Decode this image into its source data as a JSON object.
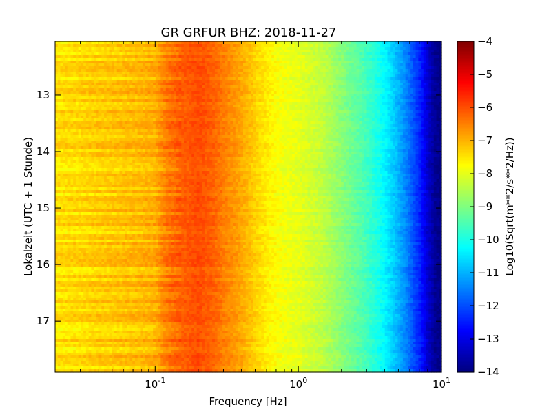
{
  "chart_data": {
    "type": "heatmap",
    "title": "GR GRFUR BHZ: 2018-11-27",
    "xlabel": "Frequency [Hz]",
    "ylabel": "Lokalzeit (UTC + 1 Stunde)",
    "x_scale": "log",
    "xlim": [
      0.02,
      10
    ],
    "x_ticks": [
      0.1,
      1,
      10
    ],
    "x_tick_labels": [
      {
        "base": "10",
        "exp": "-1"
      },
      {
        "base": "10",
        "exp": "0"
      },
      {
        "base": "10",
        "exp": "1"
      }
    ],
    "ylim": [
      12.05,
      17.9
    ],
    "y_inverted": true,
    "y_ticks": [
      13,
      14,
      15,
      16,
      17
    ],
    "y_tick_labels": [
      "13",
      "14",
      "15",
      "16",
      "17"
    ],
    "colorbar": {
      "label": "Log10(Sqrt(m**2/s**2/Hz))",
      "colormap": "jet",
      "range": [
        -14,
        -4
      ],
      "ticks": [
        -4,
        -5,
        -6,
        -7,
        -8,
        -9,
        -10,
        -11,
        -12,
        -13,
        -14
      ],
      "tick_labels": [
        "−4",
        "−5",
        "−6",
        "−7",
        "−8",
        "−9",
        "−10",
        "−11",
        "−12",
        "−13",
        "−14"
      ]
    },
    "spectrum_profile": {
      "frequency_hz": [
        0.02,
        0.03,
        0.04,
        0.06,
        0.08,
        0.1,
        0.12,
        0.15,
        0.2,
        0.25,
        0.3,
        0.4,
        0.5,
        0.6,
        0.8,
        1.0,
        1.5,
        2.0,
        3.0,
        4.0,
        5.0,
        6.0,
        7.0,
        8.0,
        9.0,
        10.0
      ],
      "value": [
        -7.5,
        -7.4,
        -7.3,
        -7.2,
        -7.1,
        -7.0,
        -6.5,
        -6.2,
        -6.0,
        -6.2,
        -6.5,
        -6.9,
        -7.3,
        -7.6,
        -7.9,
        -8.0,
        -8.4,
        -8.9,
        -9.6,
        -10.3,
        -11.0,
        -11.7,
        -12.4,
        -13.2,
        -13.8,
        -14.0
      ]
    }
  }
}
